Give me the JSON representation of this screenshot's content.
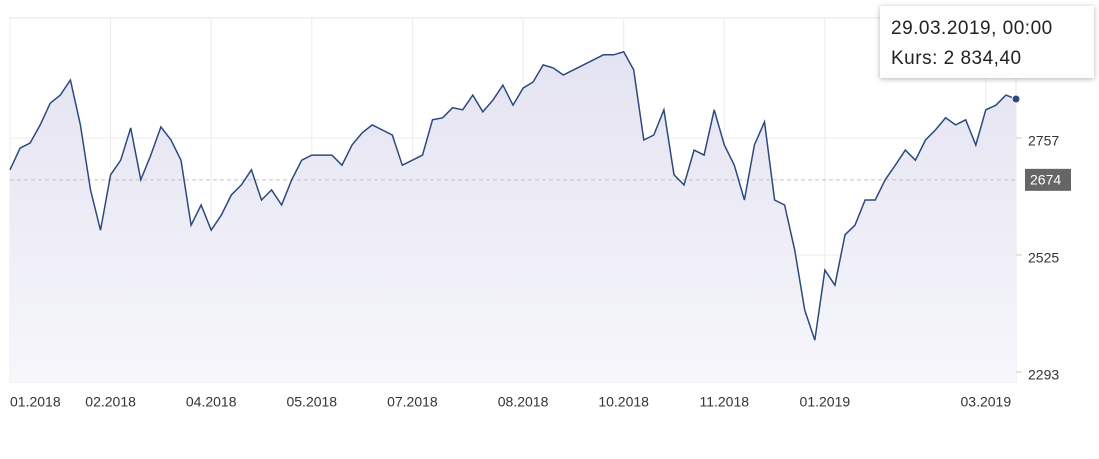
{
  "chart_data": {
    "type": "line",
    "categories": [
      "01.2018",
      null,
      null,
      null,
      null,
      null,
      null,
      null,
      null,
      null,
      "02.2018",
      null,
      null,
      null,
      null,
      null,
      null,
      null,
      null,
      null,
      "04.2018",
      null,
      null,
      null,
      null,
      null,
      null,
      null,
      null,
      null,
      "05.2018",
      null,
      null,
      null,
      null,
      null,
      null,
      null,
      null,
      null,
      "07.2018",
      null,
      null,
      null,
      null,
      null,
      null,
      null,
      null,
      null,
      null,
      "08.2018",
      null,
      null,
      null,
      null,
      null,
      null,
      null,
      null,
      null,
      "10.2018",
      null,
      null,
      null,
      null,
      null,
      null,
      null,
      null,
      null,
      "11.2018",
      null,
      null,
      null,
      null,
      null,
      null,
      null,
      null,
      null,
      "01.2019",
      null,
      null,
      null,
      null,
      null,
      null,
      null,
      null,
      null,
      null,
      null,
      null,
      null,
      null,
      null,
      "03.2019",
      null,
      null,
      null
    ],
    "series": [
      {
        "name": "Kurs",
        "color": "#2c4a7e",
        "values": [
          2694,
          2737,
          2747,
          2783,
          2826,
          2842,
          2872,
          2783,
          2654,
          2574,
          2684,
          2713,
          2777,
          2674,
          2723,
          2779,
          2753,
          2713,
          2584,
          2624,
          2574,
          2604,
          2644,
          2664,
          2694,
          2634,
          2654,
          2624,
          2674,
          2713,
          2723,
          2723,
          2723,
          2703,
          2743,
          2767,
          2783,
          2773,
          2763,
          2703,
          2713,
          2723,
          2793,
          2797,
          2817,
          2813,
          2842,
          2809,
          2832,
          2862,
          2822,
          2856,
          2868,
          2902,
          2896,
          2882,
          2892,
          2902,
          2912,
          2922,
          2922,
          2928,
          2892,
          2753,
          2763,
          2813,
          2684,
          2664,
          2733,
          2723,
          2813,
          2743,
          2703,
          2634,
          2743,
          2789,
          2634,
          2624,
          2535,
          2416,
          2356,
          2495,
          2465,
          2565,
          2584,
          2634,
          2634,
          2674,
          2703,
          2733,
          2713,
          2753,
          2773,
          2797,
          2783,
          2793,
          2743,
          2813,
          2822,
          2842,
          2834.4
        ]
      }
    ],
    "ylim": [
      2273,
      2995
    ],
    "yticks": [
      2293,
      2525,
      2757
    ],
    "grid": true,
    "reference_line": 2674,
    "tooltip": {
      "title": "29.03.2019, 00:00",
      "text": "Kurs: 2 834,40"
    }
  }
}
